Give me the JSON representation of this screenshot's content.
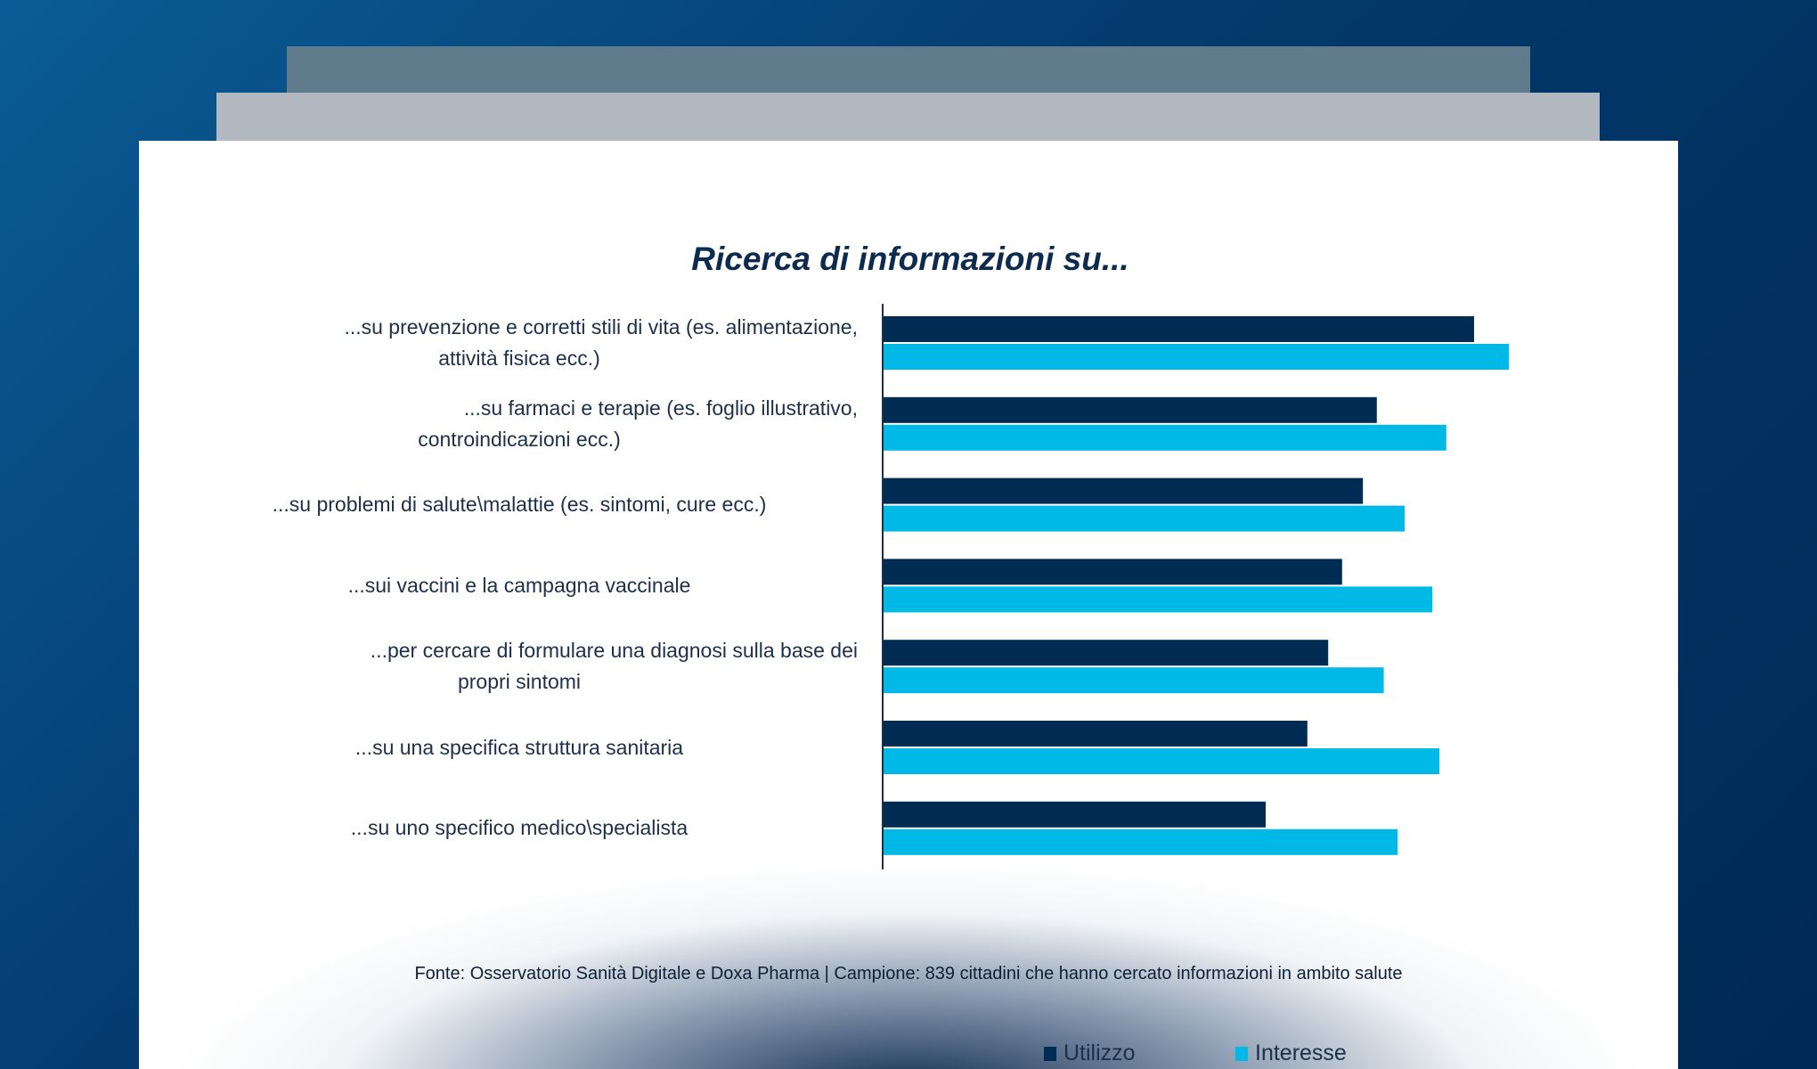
{
  "chart_data": {
    "type": "bar",
    "orientation": "horizontal",
    "title": "Ricerca di informazioni su...",
    "categories": [
      [
        "...su prevenzione e corretti stili di vita (es. alimentazione,",
        "attività fisica ecc.)"
      ],
      [
        "...su farmaci e terapie (es. foglio illustrativo,",
        "controindicazioni ecc.)"
      ],
      [
        "...su problemi di salute\\malattie (es. sintomi, cure ecc.)"
      ],
      [
        "...sui vaccini e la campagna vaccinale"
      ],
      [
        "...per cercare di formulare una diagnosi sulla base dei",
        "propri sintomi"
      ],
      [
        "...su una specifica struttura sanitaria"
      ],
      [
        "...su uno specifico medico\\specialista"
      ]
    ],
    "series": [
      {
        "name": "Utilizzo",
        "color": "#002b52",
        "values": [
          85,
          71,
          69,
          66,
          64,
          61,
          55
        ]
      },
      {
        "name": "Interesse",
        "color": "#00b9e6",
        "values": [
          90,
          81,
          75,
          79,
          72,
          80,
          74
        ]
      }
    ],
    "xlim": [
      0,
      100
    ],
    "grid": false,
    "legend_position": "bottom",
    "axis_tick_labels_shown": false
  },
  "source": "Fonte: Osservatorio Sanità Digitale e Doxa Pharma | Campione: 839 cittadini che hanno cercato informazioni in ambito salute",
  "colors": {
    "background": "#03386b",
    "axis": "#1d2f4a",
    "title": "#0d2a4f"
  }
}
